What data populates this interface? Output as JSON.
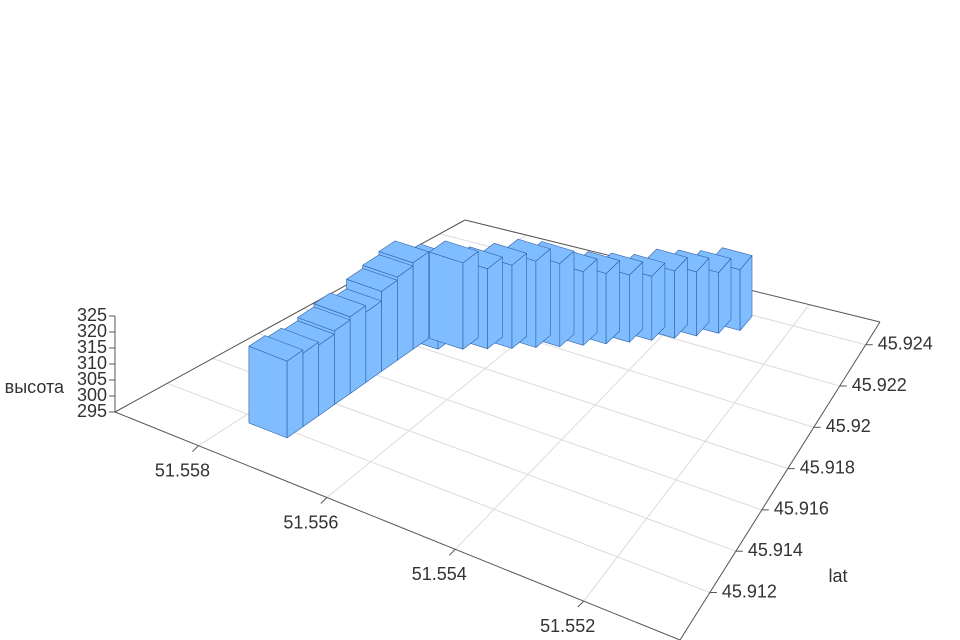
{
  "chart_data": {
    "type": "bar3d",
    "x": [
      51.55754,
      51.55754,
      51.55754,
      51.55754,
      51.55754,
      51.55754,
      51.55754,
      51.55754,
      51.55754,
      51.55723,
      51.55691,
      51.5566,
      51.55628,
      51.55597,
      51.55565,
      51.55534,
      51.55503,
      51.55471,
      51.5544,
      51.55408,
      51.55377,
      51.55345,
      51.55314
    ],
    "y": [
      45.91201,
      45.91278,
      45.91355,
      45.91432,
      45.91509,
      45.91586,
      45.91663,
      45.9174,
      45.91817,
      45.91856,
      45.91894,
      45.91933,
      45.91971,
      45.9201,
      45.92048,
      45.92087,
      45.92125,
      45.92164,
      45.92202,
      45.92241,
      45.92279,
      45.92318,
      45.92356
    ],
    "z": [
      319,
      318,
      317,
      318,
      319,
      317,
      320,
      321,
      322,
      321,
      322,
      320,
      321,
      322,
      321,
      318,
      317,
      316,
      315,
      316,
      315,
      314,
      314
    ],
    "color": "#80bdff",
    "xlim": [
      51.5505,
      51.5593
    ],
    "xticks": [
      51.552,
      51.554,
      51.556,
      51.558
    ],
    "ylim": [
      45.9097,
      45.9251
    ],
    "yticks": [
      45.912,
      45.914,
      45.916,
      45.918,
      45.92,
      45.922,
      45.924
    ],
    "zlim": [
      295,
      325
    ],
    "zticks": [
      295,
      300,
      305,
      310,
      315,
      320,
      325
    ],
    "ylabel": "lat",
    "zlabel": "высота",
    "grid": true
  }
}
